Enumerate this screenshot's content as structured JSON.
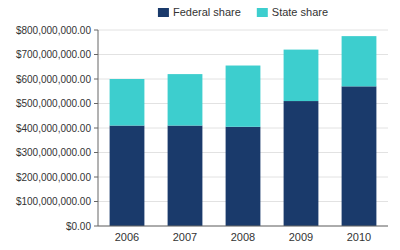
{
  "chart_data": {
    "type": "bar",
    "stacked": true,
    "categories": [
      "2006",
      "2007",
      "2008",
      "2009",
      "2010"
    ],
    "series": [
      {
        "name": "Federal share",
        "color": "#1a3a6b",
        "values": [
          410000000,
          410000000,
          405000000,
          510000000,
          570000000
        ]
      },
      {
        "name": "State share",
        "color": "#3dcece",
        "values": [
          190000000,
          210000000,
          250000000,
          210000000,
          205000000
        ]
      }
    ],
    "ylim": [
      0,
      800000000
    ],
    "yticks": [
      {
        "value": 0,
        "label": "$0.00"
      },
      {
        "value": 100000000,
        "label": "$100,000,000.00"
      },
      {
        "value": 200000000,
        "label": "$200,000,000.00"
      },
      {
        "value": 300000000,
        "label": "$300,000,000.00"
      },
      {
        "value": 400000000,
        "label": "$400,000,000.00"
      },
      {
        "value": 500000000,
        "label": "$500,000,000.00"
      },
      {
        "value": 600000000,
        "label": "$600,000,000.00"
      },
      {
        "value": 700000000,
        "label": "$700,000,000.00"
      },
      {
        "value": 800000000,
        "label": "$800,000,000.00"
      }
    ],
    "grid": true,
    "legend": "top"
  }
}
